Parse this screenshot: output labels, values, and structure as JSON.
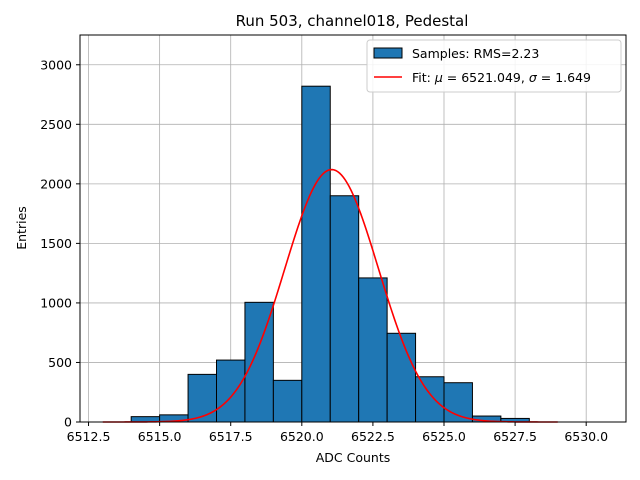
{
  "chart_data": {
    "type": "bar",
    "title": "Run 503, channel018, Pedestal",
    "xlabel": "ADC Counts",
    "ylabel": "Entries",
    "xlim": [
      6512.2,
      6531.4
    ],
    "ylim": [
      0,
      3250
    ],
    "xticks": [
      6512.5,
      6515.0,
      6517.5,
      6520.0,
      6522.5,
      6525.0,
      6527.5,
      6530.0
    ],
    "xtick_labels": [
      "6512.5",
      "6515.0",
      "6517.5",
      "6520.0",
      "6522.5",
      "6525.0",
      "6527.5",
      "6530.0"
    ],
    "yticks": [
      0,
      500,
      1000,
      1500,
      2000,
      2500,
      3000
    ],
    "ytick_labels": [
      "0",
      "500",
      "1000",
      "1500",
      "2000",
      "2500",
      "3000"
    ],
    "grid": true,
    "legend_position": "top-right",
    "colors": {
      "bars": "#1f77b4",
      "fit": "#ff0000",
      "edge": "#000000",
      "grid": "#b0b0b0"
    },
    "histogram": {
      "name": "Samples: RMS=2.23",
      "bin_edges": [
        6514,
        6515,
        6516,
        6517,
        6518,
        6519,
        6520,
        6521,
        6522,
        6523,
        6524,
        6525,
        6526,
        6527,
        6528
      ],
      "counts": [
        45,
        60,
        400,
        520,
        1005,
        350,
        2820,
        1900,
        1210,
        745,
        380,
        330,
        50,
        30
      ]
    },
    "fit": {
      "name_prefix": "Fit: ",
      "mu_symbol": "μ",
      "sigma_symbol": "σ",
      "mu_value": "6521.049",
      "sigma_value": "1.649",
      "mu": 6521.049,
      "sigma": 1.649,
      "amplitude": 2120,
      "x_range": [
        6513,
        6529
      ]
    }
  }
}
